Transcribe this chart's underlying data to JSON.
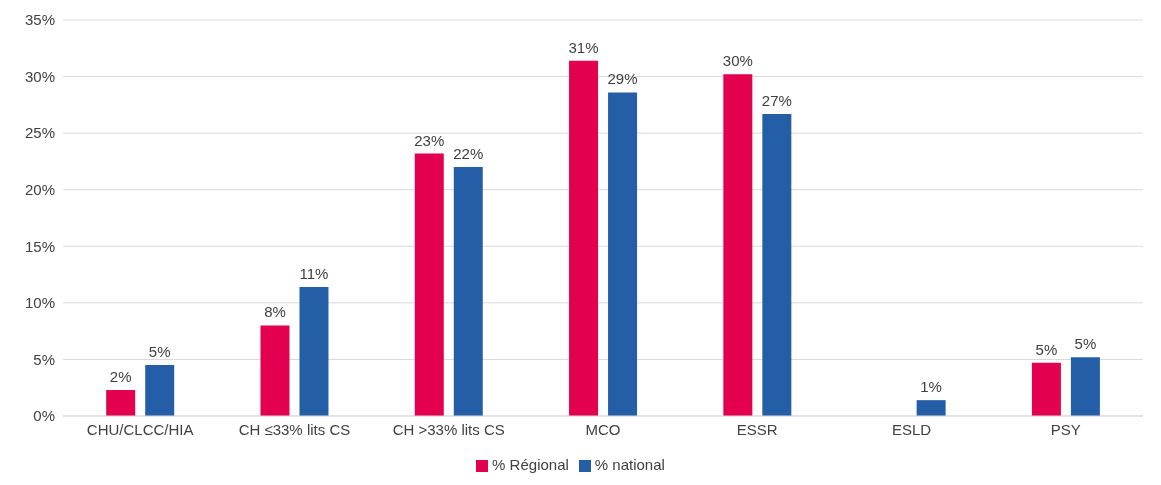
{
  "chart_data": {
    "type": "bar",
    "categories": [
      "CHU/CLCC/HIA",
      "CH ≤33% lits CS",
      "CH >33% lits CS",
      "MCO",
      "ESSR",
      "ESLD",
      "PSY"
    ],
    "series": [
      {
        "name": "% Régional",
        "color": "#e2004f",
        "values": [
          2.3,
          8.0,
          23.2,
          31.4,
          30.2,
          null,
          4.7
        ],
        "value_labels": [
          "2%",
          "8%",
          "23%",
          "31%",
          "30%",
          null,
          "5%"
        ]
      },
      {
        "name": "% national",
        "color": "#245ea6",
        "values": [
          4.5,
          11.4,
          22.0,
          28.6,
          26.7,
          1.4,
          5.2
        ],
        "value_labels": [
          "5%",
          "11%",
          "22%",
          "29%",
          "27%",
          "1%",
          "5%"
        ]
      }
    ],
    "ylim": [
      0,
      35
    ],
    "yticks": [
      {
        "value": 0,
        "label": "0%"
      },
      {
        "value": 5,
        "label": "5%"
      },
      {
        "value": 10,
        "label": "10%"
      },
      {
        "value": 15,
        "label": "15%"
      },
      {
        "value": 20,
        "label": "20%"
      },
      {
        "value": 25,
        "label": "25%"
      },
      {
        "value": 30,
        "label": "30%"
      },
      {
        "value": 35,
        "label": "35%"
      }
    ],
    "grid": "y",
    "legend": "bottom"
  }
}
